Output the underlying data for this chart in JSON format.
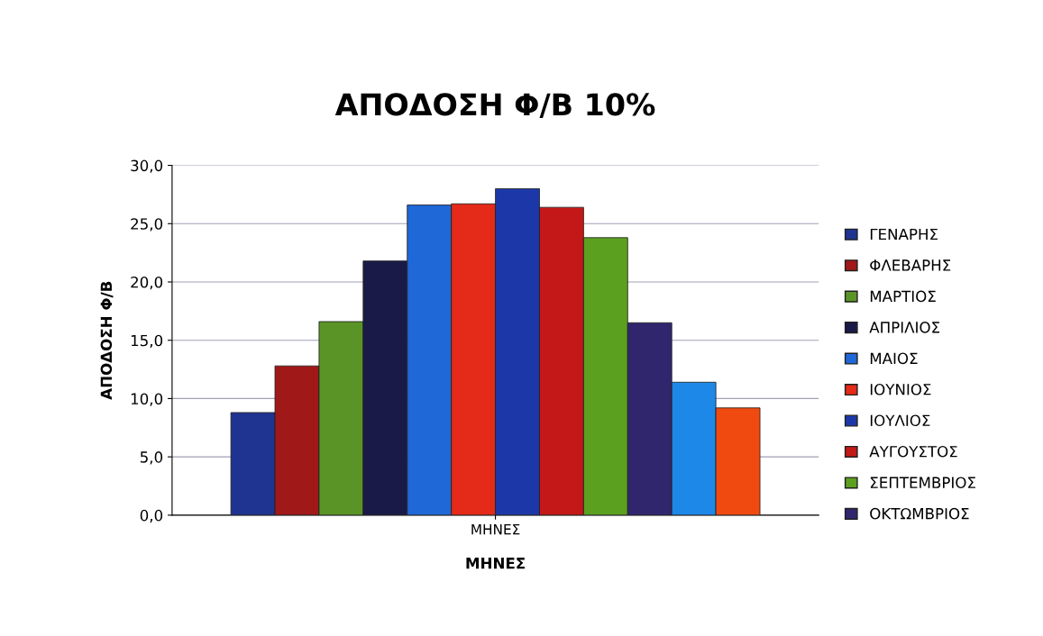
{
  "chart_data": {
    "type": "bar",
    "title": "ΑΠΟΔΟΣΗ Φ/Β 10%",
    "xlabel": "ΜΗΝΕΣ",
    "ylabel": "ΑΠΟΔΟΣΗ Φ/Β",
    "categories": [
      "ΜΗΝΕΣ"
    ],
    "series": [
      {
        "name": "ΓΕΝΑΡΗΣ",
        "color": "#1f3490",
        "values": [
          8.8
        ]
      },
      {
        "name": "ΦΛΕΒΑΡΗΣ",
        "color": "#a01818",
        "values": [
          12.8
        ]
      },
      {
        "name": "ΜΑΡΤΙΟΣ",
        "color": "#5a9426",
        "values": [
          16.6
        ]
      },
      {
        "name": "ΑΠΡΙΛΙΟΣ",
        "color": "#1a1a48",
        "values": [
          21.8
        ]
      },
      {
        "name": "ΜΑΙΟΣ",
        "color": "#1f68d8",
        "values": [
          26.6
        ]
      },
      {
        "name": "ΙΟΥΝΙΟΣ",
        "color": "#e42a18",
        "values": [
          26.7
        ]
      },
      {
        "name": "ΙΟΥΛΙΟΣ",
        "color": "#1c38a8",
        "values": [
          28.0
        ]
      },
      {
        "name": "ΑΥΓΟΥΣΤΟΣ",
        "color": "#c41818",
        "values": [
          26.4
        ]
      },
      {
        "name": "ΣΕΠΤΕΜΒΡΙΟΣ",
        "color": "#5ca020",
        "values": [
          23.8
        ]
      },
      {
        "name": "ΟΚΤΩΜΒΡΙΟΣ",
        "color": "#30266e",
        "values": [
          16.5
        ]
      },
      {
        "color": "#1e88e8",
        "values": [
          11.4
        ]
      },
      {
        "color": "#f04a10",
        "values": [
          9.2
        ]
      }
    ],
    "ylim": [
      0,
      30
    ],
    "yticks": [
      {
        "value": 0,
        "label": "0,0"
      },
      {
        "value": 5,
        "label": "5,0"
      },
      {
        "value": 10,
        "label": "10,0"
      },
      {
        "value": 15,
        "label": "15,0"
      },
      {
        "value": 20,
        "label": "20,0"
      },
      {
        "value": 25,
        "label": "25,0"
      },
      {
        "value": 30,
        "label": "30,0"
      }
    ],
    "grid": "y",
    "legend": "right"
  }
}
